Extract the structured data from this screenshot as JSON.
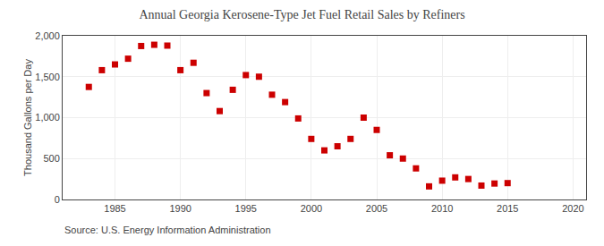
{
  "chart_data": {
    "type": "scatter",
    "title": "Annual Georgia Kerosene-Type Jet Fuel Retail Sales by Refiners",
    "ylabel": "Thousand Gallons per Day",
    "annotations": [
      "Source: U.S. Energy Information Administration"
    ],
    "x": [
      1983,
      1984,
      1985,
      1986,
      1987,
      1988,
      1989,
      1990,
      1991,
      1992,
      1993,
      1994,
      1995,
      1996,
      1997,
      1998,
      1999,
      2000,
      2001,
      2002,
      2003,
      2004,
      2005,
      2006,
      2007,
      2008,
      2009,
      2010,
      2011,
      2012,
      2013,
      2014,
      2015
    ],
    "values": [
      1375,
      1580,
      1650,
      1720,
      1875,
      1890,
      1880,
      1580,
      1670,
      1300,
      1080,
      1340,
      1520,
      1500,
      1280,
      1190,
      990,
      740,
      600,
      650,
      740,
      1000,
      850,
      540,
      500,
      380,
      160,
      230,
      270,
      250,
      170,
      195,
      200
    ],
    "color": "#cc0000",
    "marker": "square",
    "xlim": [
      1981,
      2021
    ],
    "ylim": [
      0,
      2000
    ],
    "xticks": [
      1985,
      1990,
      1995,
      2000,
      2005,
      2010,
      2015,
      2020
    ],
    "yticks": [
      0,
      500,
      {
        "value": 1000,
        "label": "1,000"
      },
      {
        "value": 1500,
        "label": "1,500"
      },
      {
        "value": 2000,
        "label": "2,000"
      }
    ],
    "grid": true
  }
}
